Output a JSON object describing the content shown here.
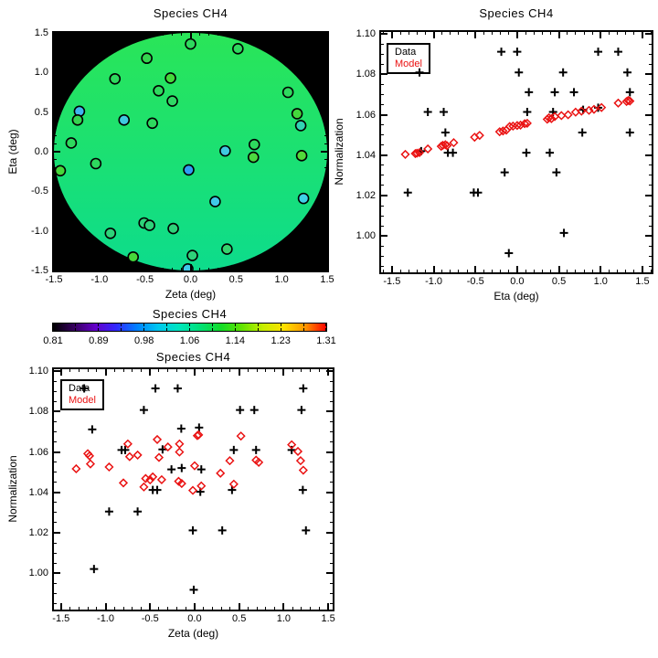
{
  "figure": {
    "background": "#ffffff"
  },
  "chart_data": [
    {
      "id": "map",
      "type": "map",
      "title": "Species CH4",
      "xlabel": "Zeta (deg)",
      "ylabel": "Eta (deg)",
      "xlim": [
        -1.5,
        1.5
      ],
      "ylim": [
        -1.5,
        1.5
      ],
      "xticks": [
        -1.5,
        -1.0,
        -0.5,
        0.0,
        0.5,
        1.0,
        1.5
      ],
      "yticks": [
        -1.5,
        -1.0,
        -0.5,
        0.0,
        0.5,
        1.0,
        1.5
      ],
      "x_minor_step": 0.1,
      "y_minor_step": 0.1,
      "x_decimals": 1,
      "y_decimals": 1,
      "panel_bg": "#000000",
      "disk_top": "#2ae558",
      "disk_bottom": "#0ddc8c",
      "points": [
        [
          0.0,
          1.36,
          "#2ed95e"
        ],
        [
          0.52,
          1.3,
          "#2ed95e"
        ],
        [
          -0.48,
          1.18,
          "#35d44f"
        ],
        [
          -0.83,
          0.92,
          "#2ed95e"
        ],
        [
          -0.22,
          0.93,
          "#44d83c"
        ],
        [
          -0.35,
          0.77,
          "#2ed95e"
        ],
        [
          -0.2,
          0.64,
          "#30d765"
        ],
        [
          1.07,
          0.75,
          "#2ed95e"
        ],
        [
          -1.22,
          0.51,
          "#3fb5ef"
        ],
        [
          -1.24,
          0.4,
          "#35d44f"
        ],
        [
          -0.73,
          0.4,
          "#3fc9e0"
        ],
        [
          -0.42,
          0.36,
          "#2ed95e"
        ],
        [
          1.17,
          0.48,
          "#44d83c"
        ],
        [
          1.21,
          0.33,
          "#32d2b2"
        ],
        [
          -1.31,
          0.11,
          "#2ed95e"
        ],
        [
          0.38,
          0.01,
          "#3fc9e0"
        ],
        [
          0.7,
          0.09,
          "#2ed95e"
        ],
        [
          0.69,
          -0.07,
          "#4cd940"
        ],
        [
          1.22,
          -0.05,
          "#52d83a"
        ],
        [
          -1.43,
          -0.24,
          "#46d83a"
        ],
        [
          -1.04,
          -0.15,
          "#2ed95e"
        ],
        [
          -0.02,
          -0.23,
          "#2f9ff2"
        ],
        [
          0.27,
          -0.63,
          "#3fc9e8"
        ],
        [
          1.24,
          -0.59,
          "#3fd2e8"
        ],
        [
          -0.88,
          -1.03,
          "#2ed27a"
        ],
        [
          -0.51,
          -0.9,
          "#2ed27a"
        ],
        [
          -0.45,
          -0.93,
          "#2ed27a"
        ],
        [
          -0.19,
          -0.97,
          "#2ed27a"
        ],
        [
          0.4,
          -1.23,
          "#35d46f"
        ],
        [
          0.02,
          -1.31,
          "#2ed27a"
        ],
        [
          -0.63,
          -1.33,
          "#46d83a"
        ],
        [
          -0.03,
          -1.48,
          "#3fc9e8"
        ]
      ]
    },
    {
      "id": "eta-scatter",
      "type": "scatter",
      "title": "Species CH4",
      "xlabel": "Eta (deg)",
      "ylabel": "Normalization",
      "xlim": [
        -1.63,
        1.61
      ],
      "ylim": [
        0.982,
        1.101
      ],
      "xticks": [
        -1.5,
        -1.0,
        -0.5,
        0.0,
        0.5,
        1.0,
        1.5
      ],
      "yticks": [
        1.0,
        1.02,
        1.04,
        1.06,
        1.08,
        1.1
      ],
      "x_minor_step": 0.1,
      "y_minor_step": 0.005,
      "x_decimals": 1,
      "y_decimals": 2,
      "legend": {
        "data": "Data",
        "model": "Model"
      },
      "colors": {
        "data": "#000000",
        "model": "#ea1212"
      },
      "data_points": [
        [
          -0.19,
          1.0912
        ],
        [
          0.0,
          1.0912
        ],
        [
          0.97,
          1.0912
        ],
        [
          1.21,
          1.0912
        ],
        [
          -1.17,
          1.081
        ],
        [
          0.02,
          1.081
        ],
        [
          0.55,
          1.081
        ],
        [
          1.32,
          1.081
        ],
        [
          0.14,
          1.0712
        ],
        [
          0.45,
          1.0712
        ],
        [
          0.68,
          1.0712
        ],
        [
          1.35,
          1.0712
        ],
        [
          -1.07,
          1.0614
        ],
        [
          -0.88,
          1.0614
        ],
        [
          0.12,
          1.0614
        ],
        [
          0.43,
          1.0614
        ],
        [
          0.97,
          1.0635
        ],
        [
          0.79,
          1.0625
        ],
        [
          -0.86,
          1.0512
        ],
        [
          0.78,
          1.0512
        ],
        [
          1.35,
          1.0512
        ],
        [
          -1.15,
          1.042
        ],
        [
          -0.83,
          1.0412
        ],
        [
          -0.77,
          1.0412
        ],
        [
          0.11,
          1.0412
        ],
        [
          0.39,
          1.0412
        ],
        [
          -0.15,
          1.0315
        ],
        [
          0.47,
          1.0315
        ],
        [
          -1.31,
          1.0215
        ],
        [
          -0.52,
          1.0215
        ],
        [
          -0.47,
          1.0215
        ],
        [
          0.56,
          1.0015
        ],
        [
          -0.1,
          0.9915
        ]
      ],
      "model_points": [
        [
          -1.34,
          1.0404
        ],
        [
          -1.22,
          1.0408
        ],
        [
          -1.2,
          1.041
        ],
        [
          -1.17,
          1.0413
        ],
        [
          -1.07,
          1.0431
        ],
        [
          -0.91,
          1.0444
        ],
        [
          -0.89,
          1.0449
        ],
        [
          -0.86,
          1.0452
        ],
        [
          -0.84,
          1.0447
        ],
        [
          -0.76,
          1.0462
        ],
        [
          -0.51,
          1.0489
        ],
        [
          -0.45,
          1.0498
        ],
        [
          -0.21,
          1.0516
        ],
        [
          -0.17,
          1.052
        ],
        [
          -0.13,
          1.0524
        ],
        [
          -0.09,
          1.0542
        ],
        [
          -0.05,
          1.0544
        ],
        [
          0.0,
          1.0547
        ],
        [
          0.04,
          1.0549
        ],
        [
          0.09,
          1.0556
        ],
        [
          0.12,
          1.0558
        ],
        [
          0.36,
          1.0578
        ],
        [
          0.38,
          1.0585
        ],
        [
          0.41,
          1.0581
        ],
        [
          0.45,
          1.0591
        ],
        [
          0.53,
          1.0596
        ],
        [
          0.61,
          1.06
        ],
        [
          0.7,
          1.0613
        ],
        [
          0.77,
          1.0618
        ],
        [
          0.86,
          1.0622
        ],
        [
          0.92,
          1.0627
        ],
        [
          1.01,
          1.0636
        ],
        [
          1.21,
          1.0658
        ],
        [
          1.31,
          1.0666
        ],
        [
          1.33,
          1.0671
        ],
        [
          1.35,
          1.0668
        ]
      ]
    },
    {
      "id": "colorbar",
      "type": "colorbar",
      "title": "Species CH4",
      "tick_labels": [
        "0.81",
        "0.89",
        "0.98",
        "1.06",
        "1.14",
        "1.23",
        "1.31"
      ],
      "gradient": [
        "#000000",
        "#36005e",
        "#6400c8",
        "#3228ff",
        "#0082ff",
        "#00c8f0",
        "#00e6be",
        "#00e178",
        "#12dc28",
        "#64e400",
        "#c8ee00",
        "#ffe100",
        "#ff9600",
        "#ff0000"
      ]
    },
    {
      "id": "zeta-scatter",
      "type": "scatter",
      "title": "Species CH4",
      "xlabel": "Zeta (deg)",
      "ylabel": "Normalization",
      "xlim": [
        -1.58,
        1.55
      ],
      "ylim": [
        0.982,
        1.101
      ],
      "xticks": [
        -1.5,
        -1.0,
        -0.5,
        0.0,
        0.5,
        1.0,
        1.5
      ],
      "yticks": [
        1.0,
        1.02,
        1.04,
        1.06,
        1.08,
        1.1
      ],
      "x_minor_step": 0.1,
      "y_minor_step": 0.005,
      "x_decimals": 1,
      "y_decimals": 2,
      "legend": {
        "data": "Data",
        "model": "Model"
      },
      "colors": {
        "data": "#000000",
        "model": "#ea1212"
      },
      "data_points": [
        [
          -1.24,
          1.0915
        ],
        [
          -0.44,
          1.0915
        ],
        [
          -0.19,
          1.0915
        ],
        [
          1.22,
          1.0915
        ],
        [
          -0.57,
          1.0808
        ],
        [
          0.51,
          1.0808
        ],
        [
          0.67,
          1.0808
        ],
        [
          1.2,
          1.0808
        ],
        [
          -1.15,
          1.0712
        ],
        [
          -0.15,
          1.0716
        ],
        [
          0.05,
          1.0721
        ],
        [
          -0.82,
          1.061
        ],
        [
          -0.78,
          1.061
        ],
        [
          -0.36,
          1.0613
        ],
        [
          0.44,
          1.061
        ],
        [
          0.69,
          1.061
        ],
        [
          1.09,
          1.061
        ],
        [
          -0.26,
          1.0514
        ],
        [
          -0.145,
          1.0521
        ],
        [
          0.075,
          1.0514
        ],
        [
          -0.47,
          1.0412
        ],
        [
          -0.42,
          1.0412
        ],
        [
          0.064,
          1.0403
        ],
        [
          0.42,
          1.0412
        ],
        [
          1.215,
          1.0412
        ],
        [
          -0.96,
          1.0305
        ],
        [
          -0.64,
          1.0305
        ],
        [
          -0.02,
          1.0212
        ],
        [
          0.31,
          1.0212
        ],
        [
          1.25,
          1.0212
        ],
        [
          -1.13,
          1.0021
        ],
        [
          -0.01,
          0.9918
        ]
      ],
      "model_points": [
        [
          -1.33,
          1.0517
        ],
        [
          -1.2,
          1.0592
        ],
        [
          -1.18,
          1.0581
        ],
        [
          -1.17,
          1.0541
        ],
        [
          -0.96,
          1.0526
        ],
        [
          -0.8,
          1.0447
        ],
        [
          -0.75,
          1.064
        ],
        [
          -0.73,
          1.0577
        ],
        [
          -0.64,
          1.0585
        ],
        [
          -0.57,
          1.0427
        ],
        [
          -0.55,
          1.0469
        ],
        [
          -0.5,
          1.0462
        ],
        [
          -0.47,
          1.0477
        ],
        [
          -0.42,
          1.0662
        ],
        [
          -0.4,
          1.0573
        ],
        [
          -0.37,
          1.0463
        ],
        [
          -0.3,
          1.0625
        ],
        [
          -0.18,
          1.0455
        ],
        [
          -0.17,
          1.064
        ],
        [
          -0.17,
          1.06
        ],
        [
          -0.145,
          1.0444
        ],
        [
          0.0,
          1.0532
        ],
        [
          -0.02,
          1.041
        ],
        [
          0.03,
          1.0681
        ],
        [
          0.045,
          1.0685
        ],
        [
          0.075,
          1.0432
        ],
        [
          0.29,
          1.0495
        ],
        [
          0.395,
          1.0557
        ],
        [
          0.44,
          1.0441
        ],
        [
          0.52,
          1.0679
        ],
        [
          0.69,
          1.056
        ],
        [
          0.72,
          1.0549
        ],
        [
          1.09,
          1.0636
        ],
        [
          1.16,
          1.0603
        ],
        [
          1.19,
          1.0557
        ],
        [
          1.22,
          1.051
        ]
      ]
    }
  ]
}
